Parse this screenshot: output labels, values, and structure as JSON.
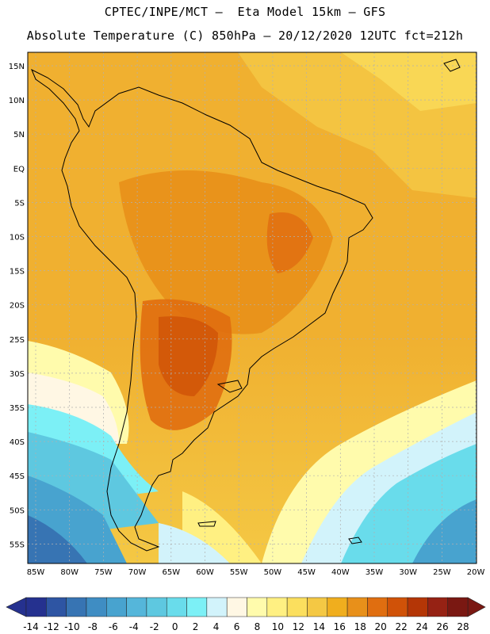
{
  "header": {
    "line1": "CPTEC/INPE/MCT –  Eta Model 15km – GFS",
    "line2": "Absolute Temperature (C) 850hPa – 20/12/2020 12UTC fct=212h"
  },
  "map": {
    "lat_labels": [
      "15N",
      "10N",
      "5N",
      "EQ",
      "5S",
      "10S",
      "15S",
      "20S",
      "25S",
      "30S",
      "35S",
      "40S",
      "45S",
      "50S",
      "55S"
    ],
    "lon_labels": [
      "85W",
      "80W",
      "75W",
      "70W",
      "65W",
      "60W",
      "55W",
      "50W",
      "45W",
      "40W",
      "35W",
      "30W",
      "25W",
      "20W"
    ]
  },
  "colorbar": {
    "labels": [
      "-14",
      "-12",
      "-10",
      "-8",
      "-6",
      "-4",
      "-2",
      "0",
      "2",
      "4",
      "6",
      "8",
      "10",
      "12",
      "14",
      "16",
      "18",
      "20",
      "22",
      "24",
      "26",
      "28"
    ],
    "colors": [
      "#25318f",
      "#2e55a3",
      "#3774b3",
      "#3f8dc3",
      "#48a3cf",
      "#55b6da",
      "#5ec8e0",
      "#69dceb",
      "#7cf0f6",
      "#d2f3fb",
      "#fff7e4",
      "#fffbac",
      "#fff082",
      "#fbdf5e",
      "#f4c844",
      "#f0ae1e",
      "#e8901a",
      "#e06e10",
      "#d05208",
      "#b43606",
      "#962214",
      "#7a1812"
    ]
  },
  "colors": {
    "land_outline": "#000000",
    "grid": "#b0b0b0"
  }
}
